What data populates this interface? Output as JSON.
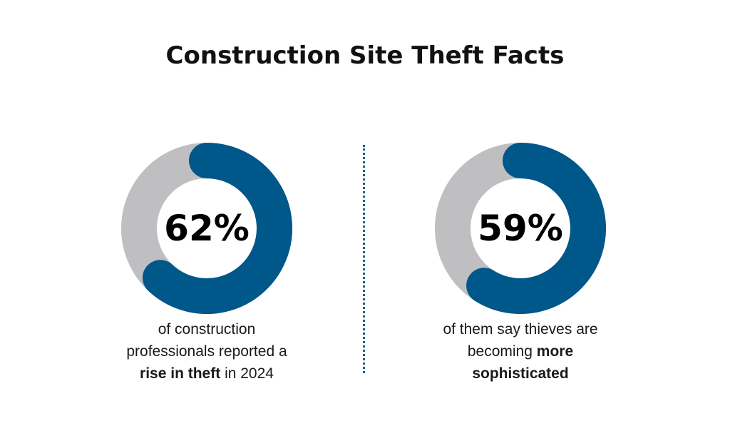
{
  "title": "Construction Site Theft Facts",
  "colors": {
    "accent": "#00578a",
    "track": "#bfbfc1",
    "divider": "#1f5f8b"
  },
  "chart_data": [
    {
      "type": "pie",
      "variant": "donut",
      "values": [
        62,
        38
      ],
      "labels": [
        "",
        ""
      ],
      "center_label": "62%",
      "caption": {
        "line1": "of construction",
        "line2": "professionals reported a",
        "line3_bold": "rise in theft",
        "line3_rest": "in 2024"
      }
    },
    {
      "type": "pie",
      "variant": "donut",
      "values": [
        59,
        41
      ],
      "labels": [
        "",
        ""
      ],
      "center_label": "59%",
      "caption": {
        "line1": "of them say thieves are",
        "line2_rest": "becoming",
        "line2_bold": "more",
        "line3_bold": "sophisticated"
      }
    }
  ]
}
